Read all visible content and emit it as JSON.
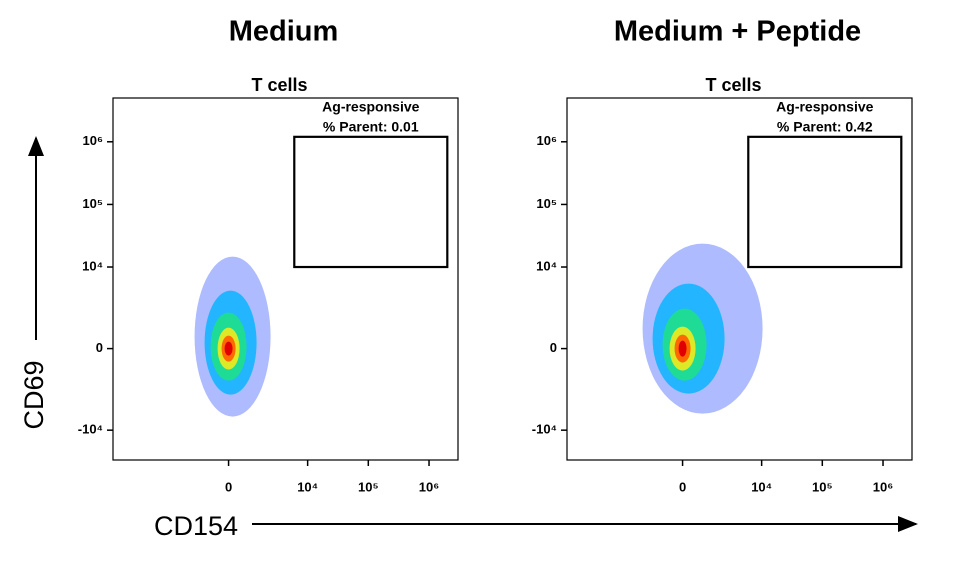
{
  "chart_data": [
    {
      "type": "density",
      "title": "Medium",
      "subtitle": "T cells",
      "xscale": "arcsinh",
      "yscale": "arcsinh",
      "xlim": [
        -40000,
        3000000
      ],
      "ylim": [
        -30000,
        5000000
      ],
      "xticks": [
        0,
        {
          "value": 10000,
          "label": "10⁴"
        },
        {
          "value": 100000,
          "label": "10⁵"
        },
        {
          "value": 1000000,
          "label": "10⁶"
        }
      ],
      "yticks": [
        {
          "value": -10000,
          "label": "-10⁴"
        },
        0,
        {
          "value": 10000,
          "label": "10⁴"
        },
        {
          "value": 100000,
          "label": "10⁵"
        },
        {
          "value": 1000000,
          "label": "10⁶"
        }
      ],
      "gate": {
        "label": "Ag-responsive",
        "value": 0.01,
        "value_label": "% Parent: 0.01",
        "xrange": [
          6000,
          2000000
        ],
        "yrange": [
          10000,
          1200000
        ]
      }
    },
    {
      "type": "density",
      "title": "Medium + Peptide",
      "subtitle": "T cells",
      "xscale": "arcsinh",
      "yscale": "arcsinh",
      "xlim": [
        -40000,
        3000000
      ],
      "ylim": [
        -30000,
        5000000
      ],
      "xticks": [
        0,
        {
          "value": 10000,
          "label": "10⁴"
        },
        {
          "value": 100000,
          "label": "10⁵"
        },
        {
          "value": 1000000,
          "label": "10⁶"
        }
      ],
      "yticks": [
        {
          "value": -10000,
          "label": "-10⁴"
        },
        0,
        {
          "value": 10000,
          "label": "10⁴"
        },
        {
          "value": 100000,
          "label": "10⁵"
        },
        {
          "value": 1000000,
          "label": "10⁶"
        }
      ],
      "gate": {
        "label": "Ag-responsive",
        "value": 0.42,
        "value_label": "% Parent: 0.42",
        "xrange": [
          6000,
          2000000
        ],
        "yrange": [
          10000,
          1200000
        ]
      }
    }
  ],
  "shared": {
    "xlabel": "CD154",
    "ylabel": "CD69"
  }
}
